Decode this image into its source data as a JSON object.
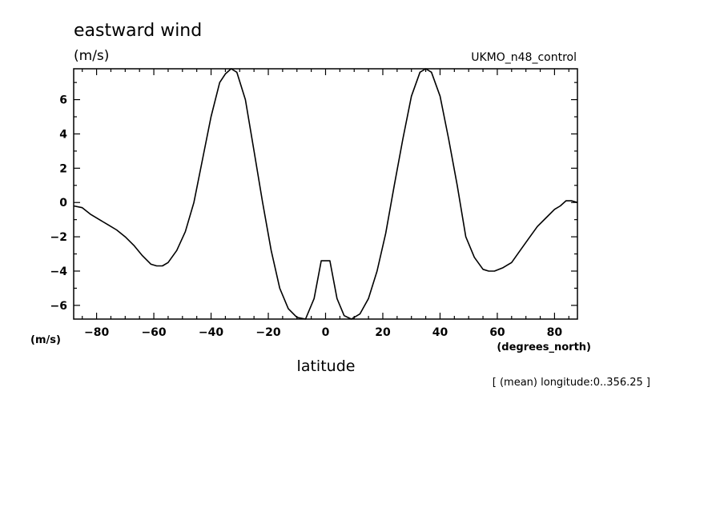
{
  "chart_data": {
    "type": "line",
    "title": "eastward wind",
    "units_label": "(m/s)",
    "dataset_label": "UKMO_n48_control",
    "ytick_units_label": "(m/s)",
    "xtick_units_label": "(degrees_north)",
    "xlabel": "latitude",
    "note": "[ (mean) longitude:0..356.25 ]",
    "xlim": [
      -88,
      88
    ],
    "ylim": [
      -6.8,
      7.8
    ],
    "xticks": [
      -80,
      -60,
      -40,
      -20,
      0,
      20,
      40,
      60,
      80
    ],
    "xtick_labels": [
      "−80",
      "−60",
      "−40",
      "−20",
      "0",
      "20",
      "40",
      "60",
      "80"
    ],
    "yticks": [
      -6,
      -4,
      -2,
      0,
      2,
      4,
      6
    ],
    "ytick_labels": [
      "−6",
      "−4",
      "−2",
      "0",
      "2",
      "4",
      "6"
    ],
    "grid": false,
    "legend": "none",
    "color": "#000000",
    "series": [
      {
        "x": [
          -88,
          -85,
          -82,
          -79,
          -76,
          -73,
          -70,
          -67,
          -64,
          -61,
          -59,
          -57,
          -55,
          -52,
          -49,
          -46,
          -43,
          -40,
          -37,
          -35,
          -33,
          -31,
          -28,
          -25,
          -22,
          -19,
          -16,
          -13,
          -10,
          -7,
          -4,
          -1.5,
          1.5,
          4,
          6.5,
          9,
          12,
          15,
          18,
          21,
          24,
          27,
          30,
          33,
          35,
          37,
          40,
          43,
          46,
          49,
          52,
          55,
          57,
          59,
          62,
          65,
          68,
          71,
          74,
          77,
          80,
          82,
          84,
          86,
          88
        ],
        "y": [
          -0.2,
          -0.3,
          -0.7,
          -1.0,
          -1.3,
          -1.6,
          -2.0,
          -2.5,
          -3.1,
          -3.6,
          -3.7,
          -3.7,
          -3.5,
          -2.8,
          -1.7,
          0.0,
          2.5,
          5.0,
          7.0,
          7.5,
          7.8,
          7.6,
          6.0,
          3.0,
          0.0,
          -2.8,
          -5.0,
          -6.2,
          -6.7,
          -6.8,
          -5.6,
          -3.4,
          -3.4,
          -5.6,
          -6.6,
          -6.8,
          -6.5,
          -5.6,
          -4.0,
          -1.8,
          1.0,
          3.7,
          6.2,
          7.6,
          7.8,
          7.6,
          6.2,
          3.7,
          1.0,
          -2.0,
          -3.2,
          -3.9,
          -4.0,
          -4.0,
          -3.8,
          -3.5,
          -2.8,
          -2.1,
          -1.4,
          -0.9,
          -0.4,
          -0.2,
          0.1,
          0.1,
          0.0
        ]
      }
    ]
  }
}
